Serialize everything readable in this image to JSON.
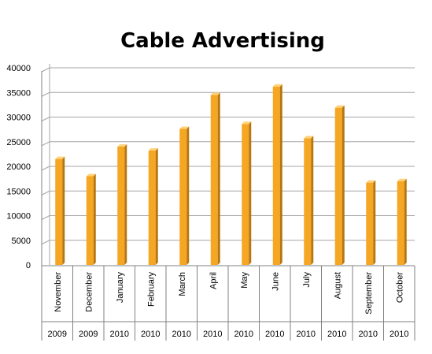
{
  "chart_data": {
    "type": "bar",
    "title": "Cable Advertising",
    "xlabel": "",
    "ylabel": "",
    "ylim": [
      0,
      40000
    ],
    "yticks": [
      0,
      5000,
      10000,
      15000,
      20000,
      25000,
      30000,
      35000,
      40000
    ],
    "grid": true,
    "categories": [
      "November",
      "December",
      "January",
      "February",
      "March",
      "April",
      "May",
      "June",
      "July",
      "August",
      "September",
      "October"
    ],
    "years": [
      "2009",
      "2009",
      "2010",
      "2010",
      "2010",
      "2010",
      "2010",
      "2010",
      "2010",
      "2010",
      "2010",
      "2010"
    ],
    "values": [
      21500,
      18000,
      24000,
      23200,
      27600,
      34500,
      28600,
      36200,
      25700,
      31900,
      16700,
      17000
    ],
    "bar_color": "#F5A623",
    "bar_side_color": "#B8760F"
  }
}
